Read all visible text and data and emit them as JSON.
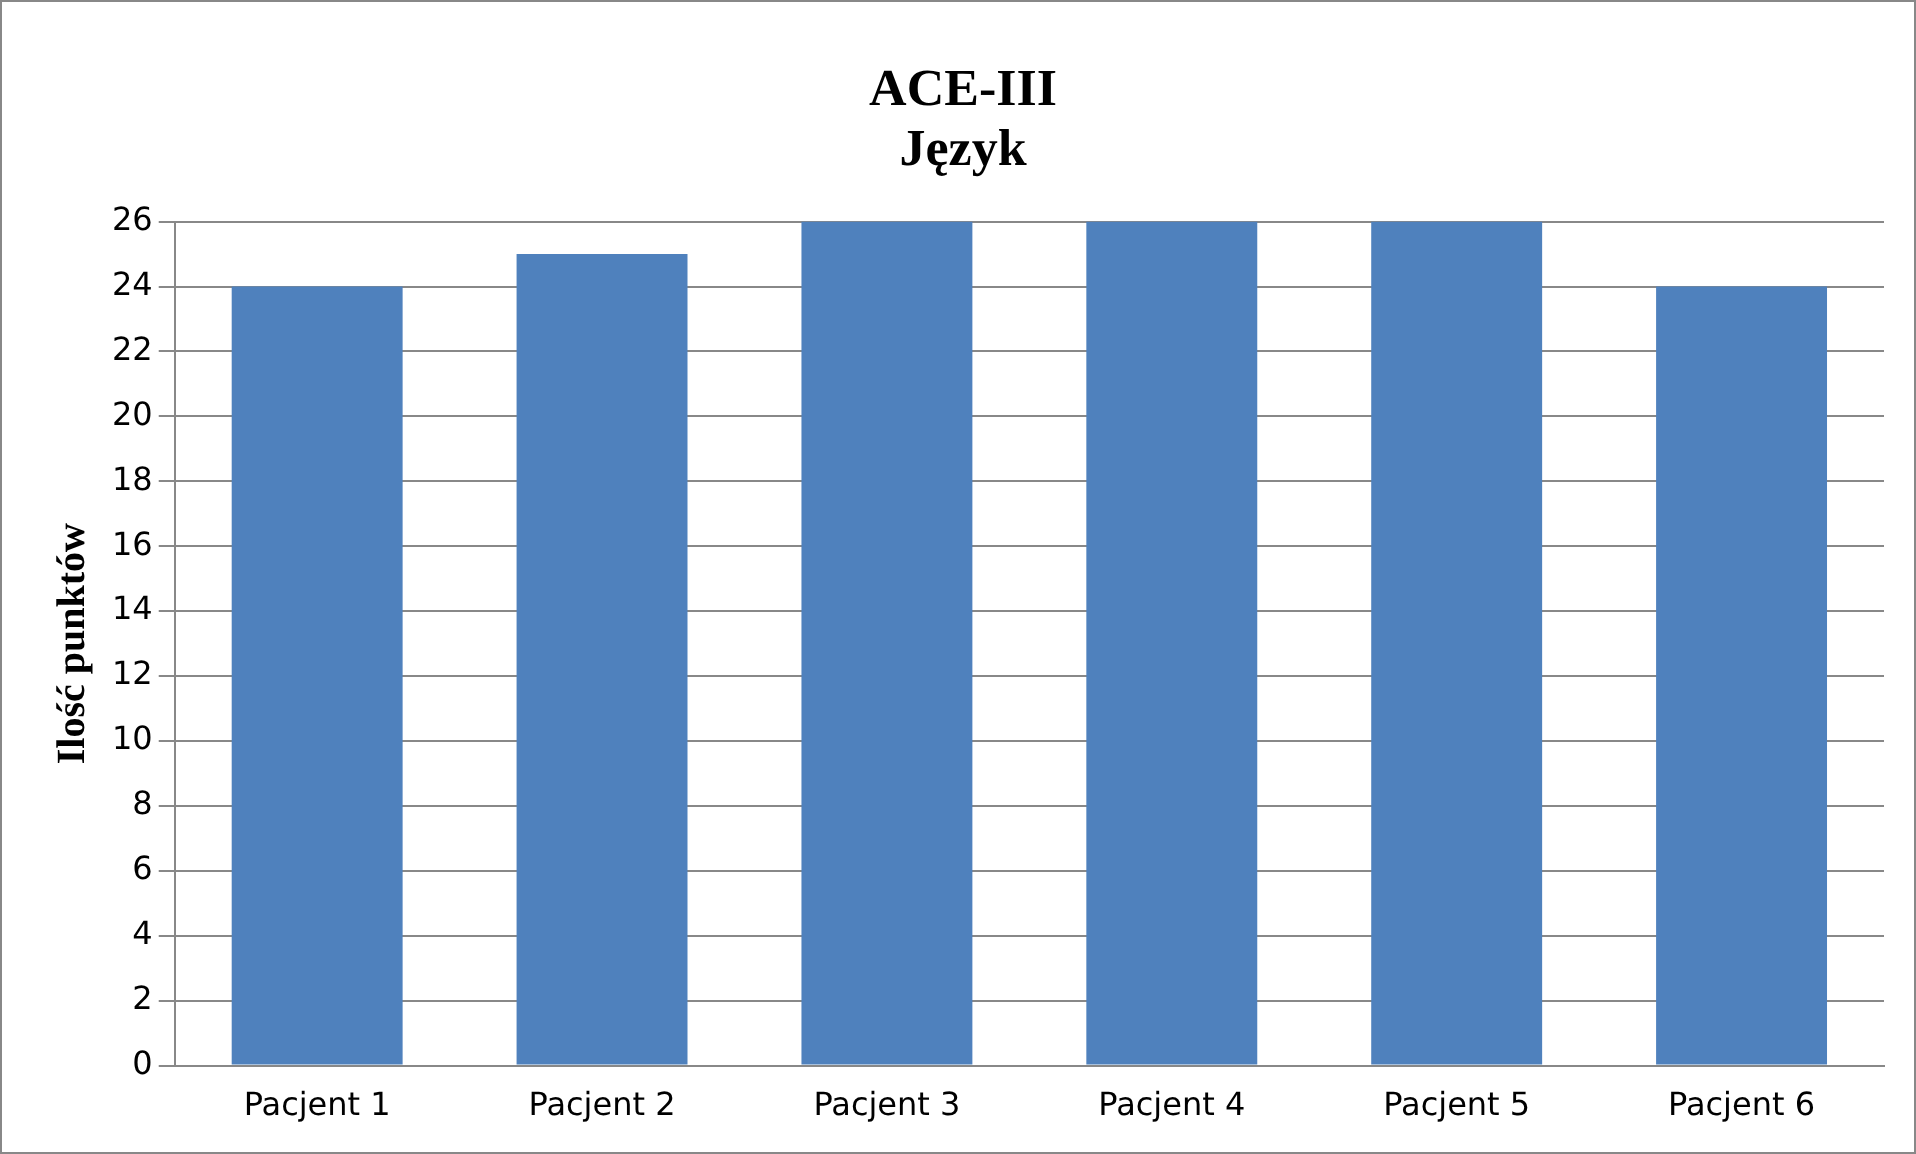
{
  "chart_data": {
    "type": "bar",
    "title": "ACE-III\nJęzyk",
    "ylabel": "Ilość punktów",
    "categories": [
      "Pacjent 1",
      "Pacjent 2",
      "Pacjent 3",
      "Pacjent 4",
      "Pacjent 5",
      "Pacjent 6"
    ],
    "values": [
      24,
      25,
      26,
      26,
      26,
      24
    ],
    "color": "#4f81bd",
    "ylim": [
      0,
      26
    ],
    "yticks": [
      0,
      2,
      4,
      6,
      8,
      10,
      12,
      14,
      16,
      18,
      20,
      22,
      24,
      26
    ],
    "grid": "y",
    "legend": false
  }
}
